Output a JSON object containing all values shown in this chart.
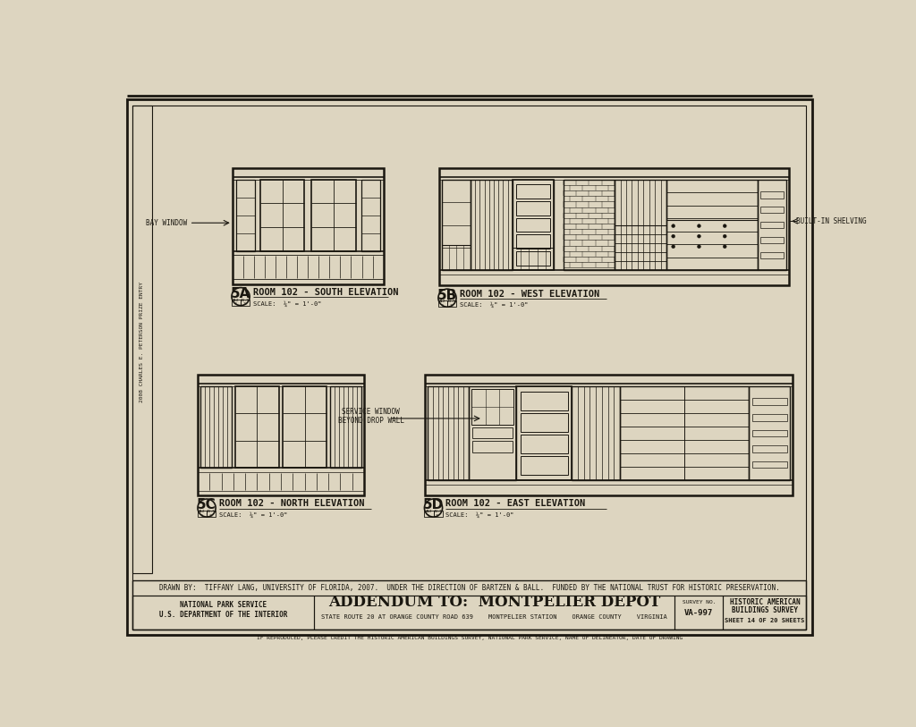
{
  "bg_color": "#ddd5c0",
  "line_color": "#1a1710",
  "drawn_by": "DRAWN BY:  TIFFANY LANG, UNIVERSITY OF FLORIDA, 2007.  UNDER THE DIRECTION OF BARTZEN & BALL.  FUNDED BY THE NATIONAL TRUST FOR HISTORIC PRESERVATION.",
  "nps_line1": "NATIONAL PARK SERVICE",
  "nps_line2": "U.S. DEPARTMENT OF THE INTERIOR",
  "title_addendum": "ADDENDUM TO:",
  "title_main": "MONTPELIER DEPOT",
  "subtitle_text": "STATE ROUTE 20 AT ORANGE COUNTY ROAD 639    MONTPELIER STATION    ORANGE COUNTY    VIRGINIA",
  "survey_no_label": "SURVEY NO.",
  "survey_no": "VA-997",
  "habs_line1": "HISTORIC AMERICAN",
  "habs_line2": "BUILDINGS SURVEY",
  "sheet_text": "SHEET 14 OF 20 SHEETS",
  "reproduced_text": "IF REPRODUCED, PLEASE CREDIT THE HISTORIC AMERICAN BUILDINGS SURVEY, NATIONAL PARK SERVICE, NAME OF DELINEATOR, DATE OF DRAWING",
  "side_text": "2008 CHARLES E. PETERSON PRIZE ENTRY",
  "label_5A": "5A",
  "title_5A": "ROOM 102 - SOUTH ELEVATION",
  "scale_5A": "SCALE:  ¼\" = 1'-0\"",
  "label_5B": "5B",
  "title_5B": "ROOM 102 - WEST ELEVATION",
  "scale_5B": "SCALE:  ¼\" = 1'-0\"",
  "label_5C": "5C",
  "title_5C": "ROOM 102 - NORTH ELEVATION",
  "scale_5C": "SCALE:  ¼\" = 1'-0\"",
  "label_5D": "5D",
  "title_5D": "ROOM 102 - EAST ELEVATION",
  "scale_5D": "SCALE:  ¼\" = 1'-0\"",
  "bay_window_label": "BAY WINDOW",
  "built_in_shelving_label": "BUILT-IN SHELVING",
  "service_window_label": "SERVICE WINDOW\nBEYOND DROP WALL"
}
